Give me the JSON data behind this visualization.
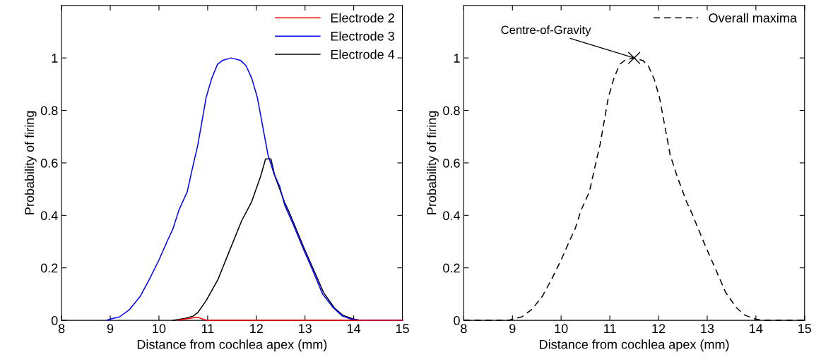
{
  "chart_data": [
    {
      "type": "line",
      "xlabel": "Distance from cochlea apex (mm)",
      "ylabel": "Probability of firing",
      "xlim": [
        8,
        15
      ],
      "ylim": [
        0,
        1.2
      ],
      "xticks": [
        8,
        9,
        10,
        11,
        12,
        13,
        14,
        15
      ],
      "yticks": [
        0,
        0.2,
        0.4,
        0.6,
        0.8,
        1
      ],
      "legend": "top right",
      "grid": false,
      "line_style": "solid",
      "series": [
        {
          "name": "Electrode 2",
          "color": "#ff0000",
          "x": [
            10.39,
            10.53,
            10.73,
            10.82,
            10.97,
            15
          ],
          "values": [
            0,
            0.005,
            0.01,
            0.01,
            0,
            0
          ]
        },
        {
          "name": "Electrode 3",
          "color": "#0000ff",
          "x": [
            8.93,
            9.0,
            9.19,
            9.39,
            9.61,
            9.8,
            10.0,
            10.19,
            10.29,
            10.41,
            10.58,
            10.7,
            10.8,
            10.97,
            11.08,
            11.2,
            11.3,
            11.48,
            11.68,
            11.79,
            11.91,
            12.02,
            12.14,
            12.24,
            12.36,
            12.48,
            12.58,
            12.77,
            12.97,
            13.16,
            13.36,
            13.58,
            13.77,
            13.94,
            14.14,
            15
          ],
          "values": [
            0,
            0.005,
            0.013,
            0.04,
            0.09,
            0.155,
            0.23,
            0.31,
            0.35,
            0.42,
            0.49,
            0.59,
            0.67,
            0.85,
            0.92,
            0.975,
            0.99,
            1.0,
            0.99,
            0.97,
            0.92,
            0.85,
            0.73,
            0.63,
            0.56,
            0.51,
            0.44,
            0.36,
            0.27,
            0.19,
            0.1,
            0.048,
            0.016,
            0.005,
            0,
            0
          ]
        },
        {
          "name": "Electrode 4",
          "color": "#000000",
          "x": [
            10.29,
            10.39,
            10.53,
            10.7,
            10.8,
            10.97,
            11.21,
            11.46,
            11.7,
            11.9,
            12.09,
            12.19,
            12.3,
            12.38,
            12.48,
            12.58,
            12.68,
            12.97,
            13.16,
            13.38,
            13.6,
            13.77,
            13.99,
            14.14,
            15
          ],
          "values": [
            0,
            0.003,
            0.007,
            0.016,
            0.03,
            0.075,
            0.155,
            0.27,
            0.38,
            0.45,
            0.55,
            0.615,
            0.615,
            0.55,
            0.5,
            0.45,
            0.41,
            0.28,
            0.2,
            0.106,
            0.048,
            0.02,
            0.005,
            0,
            0
          ]
        }
      ]
    },
    {
      "type": "line",
      "xlabel": "Distance from cochlea apex (mm)",
      "ylabel": "Probability of firing",
      "xlim": [
        8,
        15
      ],
      "ylim": [
        0,
        1.2
      ],
      "xticks": [
        8,
        9,
        10,
        11,
        12,
        13,
        14,
        15
      ],
      "yticks": [
        0,
        0.2,
        0.4,
        0.6,
        0.8,
        1
      ],
      "legend": "top right",
      "grid": false,
      "annotations": [
        {
          "text": "Centre-of-Gravity",
          "x": 11.5,
          "y": 1.0
        }
      ],
      "series": [
        {
          "name": "Overall maxima",
          "color": "#000000",
          "line_style": "dashed",
          "x": [
            8,
            8.93,
            9.0,
            9.19,
            9.39,
            9.61,
            9.8,
            10.0,
            10.19,
            10.29,
            10.41,
            10.58,
            10.7,
            10.8,
            10.97,
            11.08,
            11.2,
            11.3,
            11.48,
            11.68,
            11.79,
            11.91,
            12.02,
            12.14,
            12.24,
            12.38,
            12.48,
            12.58,
            12.68,
            12.97,
            13.16,
            13.38,
            13.6,
            13.77,
            13.99,
            14.14,
            15
          ],
          "values": [
            0,
            0,
            0.005,
            0.013,
            0.04,
            0.09,
            0.155,
            0.23,
            0.31,
            0.35,
            0.42,
            0.49,
            0.59,
            0.67,
            0.85,
            0.92,
            0.975,
            0.99,
            1.0,
            0.99,
            0.97,
            0.92,
            0.85,
            0.73,
            0.63,
            0.55,
            0.5,
            0.45,
            0.41,
            0.28,
            0.2,
            0.106,
            0.048,
            0.02,
            0.005,
            0,
            0
          ]
        },
        {
          "type": "scatter",
          "marker": "cross",
          "color": "#000000",
          "x": [
            11.5
          ],
          "values": [
            1.0
          ]
        }
      ]
    }
  ]
}
